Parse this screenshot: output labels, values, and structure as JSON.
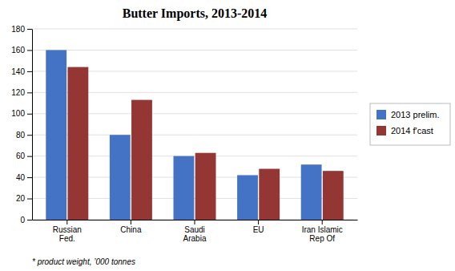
{
  "chart_data": {
    "type": "bar",
    "title": "Butter Imports, 2013-2014",
    "categories": [
      "Russian\nFed.",
      "China",
      "Saudi\nArabia",
      "EU",
      "Iran Islamic\nRep Of"
    ],
    "series": [
      {
        "name": "2013 prelim.",
        "color": "#4472C4",
        "values": [
          160,
          80,
          60,
          42,
          52
        ]
      },
      {
        "name": "2014 f'cast",
        "color": "#943634",
        "values": [
          144,
          113,
          63,
          48,
          46
        ]
      }
    ],
    "ylim": [
      0,
      180
    ],
    "yticks": [
      0,
      20,
      40,
      60,
      80,
      100,
      120,
      140,
      160,
      180
    ],
    "grid": true,
    "legend": "right",
    "annotations": [
      "* product weight, ’000 tonnes"
    ]
  }
}
